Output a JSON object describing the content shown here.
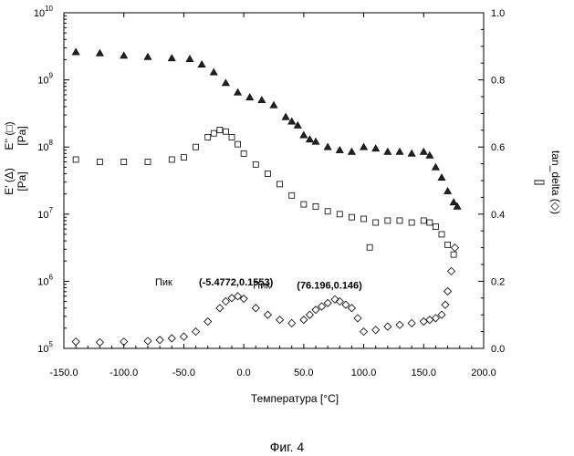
{
  "figure_caption": "Фиг. 4",
  "chart_data": {
    "type": "scatter",
    "xlabel": "Температура [°C]",
    "y_left_label_line1": "E' (Δ)",
    "y_left_label_line2": "[Pa]",
    "y_left_label_line3": "E'' (□)",
    "y_left_label_line4": "[Pa]",
    "y_right_label": "tan_delta (◇)",
    "y_right_unit": "[]",
    "xlim": [
      -150,
      200
    ],
    "y_left_scale": "log",
    "y_left_lim": [
      100000,
      10000000000
    ],
    "y_right_lim": [
      0.0,
      1.0
    ],
    "x_ticks": [
      "-150.0",
      "-100.0",
      "-50.0",
      "0.0",
      "50.0",
      "100.0",
      "150.0",
      "200.0"
    ],
    "y_left_ticks": [
      {
        "base": "10",
        "exp": "10"
      },
      {
        "base": "10",
        "exp": "9"
      },
      {
        "base": "10",
        "exp": "8"
      },
      {
        "base": "10",
        "exp": "7"
      },
      {
        "base": "10",
        "exp": "6"
      },
      {
        "base": "10",
        "exp": "5"
      }
    ],
    "y_right_ticks": [
      "1.0",
      "0.8",
      "0.6",
      "0.4",
      "0.2",
      "0.0"
    ],
    "annotations": [
      {
        "label": "Пик",
        "value": "(-5.4772,0.1553)",
        "x": -5.4772,
        "y": 0.1553
      },
      {
        "label": "Пик",
        "value": "(76.196,0.146)",
        "x": 76.196,
        "y": 0.146
      }
    ],
    "series": [
      {
        "name": "E'",
        "marker": "triangle",
        "axis": "left",
        "x": [
          -140,
          -120,
          -100,
          -80,
          -60,
          -45,
          -35,
          -25,
          -15,
          -5,
          5,
          15,
          25,
          35,
          40,
          45,
          50,
          55,
          60,
          70,
          80,
          90,
          100,
          110,
          120,
          130,
          140,
          150,
          155,
          160,
          165,
          170,
          175,
          178
        ],
        "y": [
          2600000000.0,
          2500000000.0,
          2300000000.0,
          2200000000.0,
          2100000000.0,
          2050000000.0,
          1700000000.0,
          1300000000.0,
          900000000.0,
          650000000.0,
          550000000.0,
          500000000.0,
          420000000.0,
          280000000.0,
          240000000.0,
          210000000.0,
          150000000.0,
          130000000.0,
          120000000.0,
          100000000.0,
          90000000.0,
          85000000.0,
          100000000.0,
          95000000.0,
          85000000.0,
          85000000.0,
          80000000.0,
          85000000.0,
          75000000.0,
          50000000.0,
          35000000.0,
          22000000.0,
          15000000.0,
          13000000.0
        ]
      },
      {
        "name": "E''",
        "marker": "square",
        "axis": "left",
        "x": [
          -140,
          -120,
          -100,
          -80,
          -60,
          -50,
          -40,
          -30,
          -25,
          -20,
          -15,
          -10,
          -5,
          0,
          10,
          20,
          30,
          40,
          50,
          60,
          70,
          80,
          90,
          100,
          105,
          110,
          120,
          130,
          140,
          150,
          155,
          160,
          165,
          170,
          175
        ],
        "y": [
          65000000.0,
          60000000.0,
          60000000.0,
          60000000.0,
          65000000.0,
          70000000.0,
          100000000.0,
          140000000.0,
          160000000.0,
          180000000.0,
          170000000.0,
          140000000.0,
          110000000.0,
          80000000.0,
          55000000.0,
          40000000.0,
          28000000.0,
          19000000.0,
          14000000.0,
          13000000.0,
          11000000.0,
          10000000.0,
          9000000.0,
          8500000.0,
          3200000.0,
          7500000.0,
          8000000.0,
          8000000.0,
          7500000.0,
          8000000.0,
          7500000.0,
          6500000.0,
          5000000.0,
          3500000.0,
          2500000.0
        ]
      },
      {
        "name": "tan_delta",
        "marker": "diamond",
        "axis": "right",
        "x": [
          -140,
          -120,
          -100,
          -80,
          -70,
          -60,
          -50,
          -40,
          -30,
          -20,
          -15,
          -10,
          -5,
          0,
          10,
          20,
          30,
          40,
          50,
          55,
          60,
          65,
          70,
          76,
          80,
          85,
          90,
          95,
          100,
          110,
          120,
          130,
          140,
          150,
          155,
          160,
          165,
          168,
          170,
          173,
          176
        ],
        "y": [
          0.02,
          0.018,
          0.02,
          0.022,
          0.025,
          0.03,
          0.035,
          0.05,
          0.08,
          0.12,
          0.14,
          0.15,
          0.1553,
          0.148,
          0.12,
          0.1,
          0.085,
          0.075,
          0.085,
          0.1,
          0.115,
          0.125,
          0.135,
          0.146,
          0.14,
          0.13,
          0.12,
          0.09,
          0.05,
          0.055,
          0.065,
          0.07,
          0.075,
          0.08,
          0.085,
          0.09,
          0.1,
          0.13,
          0.17,
          0.23,
          0.3
        ]
      }
    ]
  }
}
